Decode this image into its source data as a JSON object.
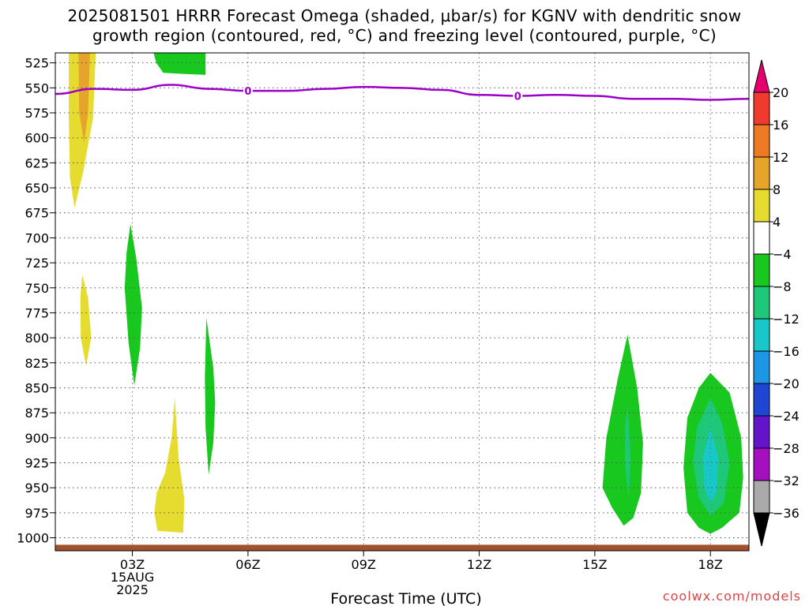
{
  "title_line1": "2025081501 HRRR Forecast Omega (shaded, μbar/s) for KGNV with dendritic snow",
  "title_line2": "growth region (contoured, red, °C) and freezing level (contoured, purple, °C)",
  "watermark": "coolwx.com/models",
  "chart_data": {
    "type": "heatmap",
    "xlabel": "Forecast Time (UTC)",
    "x_ticks": [
      "03Z",
      "06Z",
      "09Z",
      "12Z",
      "15Z",
      "18Z"
    ],
    "x_tick_hours": [
      3,
      6,
      9,
      12,
      15,
      18
    ],
    "x_date_lines": [
      "15AUG",
      "2025"
    ],
    "x_range_hours": [
      1,
      19
    ],
    "y_ticks": [
      525,
      550,
      575,
      600,
      625,
      650,
      675,
      700,
      725,
      750,
      775,
      800,
      825,
      850,
      875,
      900,
      925,
      950,
      975,
      1000
    ],
    "y_range_hPa": [
      515,
      1013
    ],
    "y_inverted": true,
    "grid": true,
    "colorbar": {
      "labels": [
        "20",
        "16",
        "12",
        "8",
        "4",
        "−4",
        "−8",
        "−12",
        "−16",
        "−20",
        "−24",
        "−28",
        "−32",
        "−36"
      ],
      "colors": [
        "#e8006e",
        "#f03a2e",
        "#ef7a24",
        "#e6a52a",
        "#e6dc30",
        "#ffffff",
        "#19c81e",
        "#1ec878",
        "#18c8c8",
        "#1e96e6",
        "#1e46d2",
        "#6414c8",
        "#a50fc0",
        "#aaaaaa"
      ]
    },
    "freezing_level": {
      "color": "#9c00c8",
      "label": "0",
      "label_hours": [
        6,
        13
      ],
      "hours": [
        1,
        2,
        3,
        4,
        5,
        6,
        7,
        8,
        9,
        10,
        11,
        12,
        13,
        14,
        15,
        16,
        17,
        18,
        19
      ],
      "pressure_hPa": [
        556,
        551,
        552,
        547,
        551,
        553,
        553,
        551,
        549,
        550,
        552,
        557,
        558,
        557,
        558,
        561,
        561,
        562,
        561
      ]
    },
    "omega_regions": [
      {
        "value_class": "4",
        "color": "#e6dc30",
        "polygon": [
          [
            1.35,
            515
          ],
          [
            2.05,
            515
          ],
          [
            1.98,
            580
          ],
          [
            1.72,
            635
          ],
          [
            1.5,
            670
          ],
          [
            1.38,
            640
          ],
          [
            1.35,
            580
          ]
        ]
      },
      {
        "value_class": "8",
        "color": "#e6a52a",
        "polygon": [
          [
            1.6,
            515
          ],
          [
            1.9,
            515
          ],
          [
            1.85,
            575
          ],
          [
            1.75,
            605
          ],
          [
            1.62,
            575
          ]
        ]
      },
      {
        "value_class": "-8",
        "color": "#19c81e",
        "polygon": [
          [
            3.55,
            515
          ],
          [
            4.9,
            515
          ],
          [
            4.9,
            537
          ],
          [
            4.3,
            536
          ],
          [
            3.8,
            535
          ],
          [
            3.62,
            525
          ]
        ]
      },
      {
        "value_class": "4",
        "color": "#e6dc30",
        "polygon": [
          [
            1.7,
            737
          ],
          [
            1.85,
            760
          ],
          [
            1.93,
            800
          ],
          [
            1.8,
            828
          ],
          [
            1.66,
            800
          ],
          [
            1.65,
            760
          ]
        ]
      },
      {
        "value_class": "-8",
        "color": "#19c81e",
        "polygon": [
          [
            2.95,
            686
          ],
          [
            3.1,
            720
          ],
          [
            3.25,
            770
          ],
          [
            3.2,
            810
          ],
          [
            3.05,
            848
          ],
          [
            2.9,
            805
          ],
          [
            2.8,
            750
          ],
          [
            2.85,
            715
          ]
        ]
      },
      {
        "value_class": "-8",
        "color": "#19c81e",
        "polygon": [
          [
            4.92,
            780
          ],
          [
            5.1,
            830
          ],
          [
            5.15,
            865
          ],
          [
            5.1,
            905
          ],
          [
            4.98,
            937
          ],
          [
            4.9,
            890
          ],
          [
            4.88,
            840
          ]
        ]
      },
      {
        "value_class": "4",
        "color": "#e6dc30",
        "polygon": [
          [
            4.1,
            860
          ],
          [
            4.2,
            920
          ],
          [
            4.35,
            962
          ],
          [
            4.32,
            995
          ],
          [
            3.65,
            993
          ],
          [
            3.57,
            975
          ],
          [
            3.63,
            955
          ],
          [
            3.85,
            935
          ],
          [
            4.02,
            900
          ]
        ]
      },
      {
        "value_class": "-8",
        "color": "#19c81e",
        "polygon": [
          [
            15.85,
            797
          ],
          [
            16.1,
            850
          ],
          [
            16.25,
            905
          ],
          [
            16.2,
            955
          ],
          [
            16.0,
            980
          ],
          [
            15.75,
            988
          ],
          [
            15.45,
            970
          ],
          [
            15.2,
            950
          ],
          [
            15.3,
            900
          ],
          [
            15.6,
            840
          ]
        ]
      },
      {
        "value_class": "-12",
        "color": "#1ec878",
        "polygon": [
          [
            15.85,
            868
          ],
          [
            15.93,
            920
          ],
          [
            15.88,
            960
          ],
          [
            15.78,
            925
          ],
          [
            15.79,
            890
          ]
        ]
      },
      {
        "value_class": "-8",
        "color": "#19c81e",
        "polygon": [
          [
            18.0,
            835
          ],
          [
            18.5,
            855
          ],
          [
            18.8,
            900
          ],
          [
            18.85,
            940
          ],
          [
            18.75,
            975
          ],
          [
            18.3,
            990
          ],
          [
            18.0,
            996
          ],
          [
            17.7,
            990
          ],
          [
            17.4,
            975
          ],
          [
            17.3,
            930
          ],
          [
            17.4,
            880
          ],
          [
            17.7,
            850
          ]
        ]
      },
      {
        "value_class": "-12",
        "color": "#1ec878",
        "polygon": [
          [
            18.0,
            860
          ],
          [
            18.3,
            885
          ],
          [
            18.5,
            925
          ],
          [
            18.35,
            965
          ],
          [
            18.0,
            978
          ],
          [
            17.7,
            960
          ],
          [
            17.55,
            925
          ],
          [
            17.65,
            890
          ]
        ]
      },
      {
        "value_class": "-16",
        "color": "#18c8c8",
        "polygon": [
          [
            18.0,
            890
          ],
          [
            18.2,
            920
          ],
          [
            18.15,
            955
          ],
          [
            18.0,
            965
          ],
          [
            17.85,
            950
          ],
          [
            17.8,
            920
          ]
        ]
      }
    ]
  }
}
